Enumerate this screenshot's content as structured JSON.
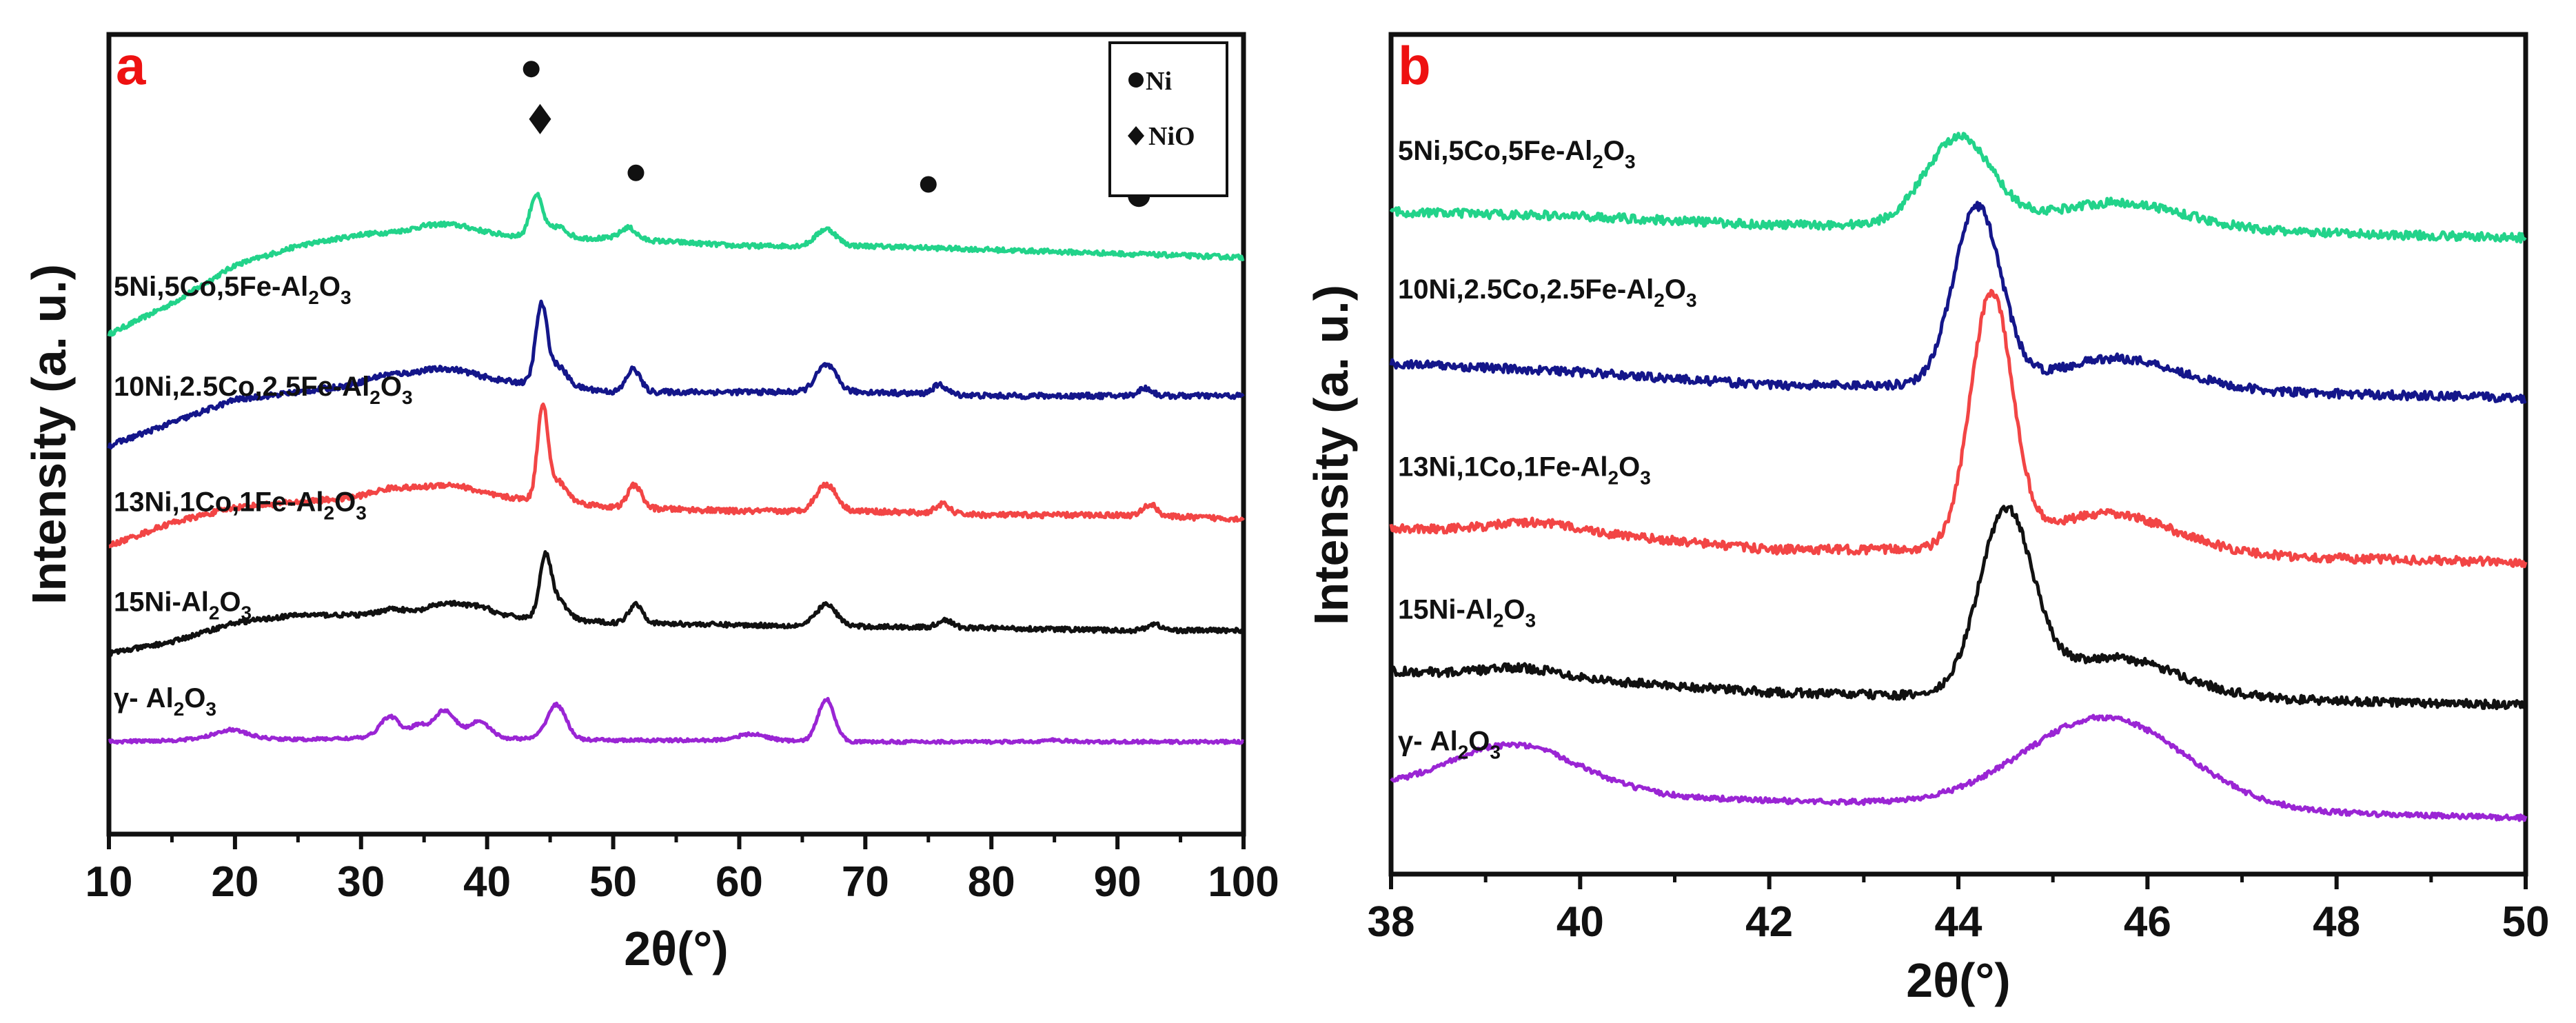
{
  "chart_data": [
    {
      "panel": "a",
      "type": "line",
      "xlabel": "2θ(°)",
      "ylabel": "Intensity (a. u.)",
      "xlim": [
        10,
        100
      ],
      "xticks": [
        10,
        20,
        30,
        40,
        50,
        60,
        70,
        80,
        90,
        100
      ],
      "legend": [
        {
          "marker": "circle",
          "label": "Ni"
        },
        {
          "marker": "diamond",
          "label": "NiO"
        }
      ],
      "markers": [
        {
          "kind": "circle",
          "x": 43.5,
          "y": 9.05
        },
        {
          "kind": "diamond",
          "x": 44.2,
          "y": 8.4
        },
        {
          "kind": "circle",
          "x": 51.8,
          "y": 7.7
        },
        {
          "kind": "circle",
          "x": 75.0,
          "y": 7.55
        },
        {
          "kind": "circle-large",
          "x": 91.7,
          "y": 7.4
        }
      ],
      "series": [
        {
          "name": "5Ni,5Co,5Fe-Al2O3",
          "label_main": "5Ni,5Co,5Fe-Al",
          "label_sub1": "2",
          "label_mid": "O",
          "label_sub2": "3",
          "color": "#22d38a",
          "baseline": [
            [
              10,
              5.6
            ],
            [
              15,
              6.0
            ],
            [
              20,
              6.5
            ],
            [
              25,
              6.75
            ],
            [
              30,
              6.9
            ],
            [
              35,
              6.95
            ],
            [
              40,
              6.9
            ],
            [
              45,
              6.85
            ],
            [
              50,
              6.85
            ],
            [
              60,
              6.75
            ],
            [
              70,
              6.75
            ],
            [
              80,
              6.7
            ],
            [
              90,
              6.65
            ],
            [
              100,
              6.6
            ]
          ],
          "peaks": [
            [
              37,
              0.1,
              2.0
            ],
            [
              43.9,
              0.55,
              0.5
            ],
            [
              45.6,
              0.15,
              0.7
            ],
            [
              51.2,
              0.15,
              0.6
            ],
            [
              66.9,
              0.22,
              0.8
            ]
          ],
          "noise": 0.03
        },
        {
          "name": "10Ni,2.5Co,2.5Fe-Al2O3",
          "label_main": "10Ni,2.5Co,2.5Fe-Al",
          "label_sub1": "2",
          "label_mid": "O",
          "label_sub2": "3",
          "color": "#14168a",
          "baseline": [
            [
              10,
              4.15
            ],
            [
              15,
              4.45
            ],
            [
              20,
              4.75
            ],
            [
              25,
              4.85
            ],
            [
              30,
              4.95
            ],
            [
              35,
              5.05
            ],
            [
              40,
              5.0
            ],
            [
              45,
              4.95
            ],
            [
              50,
              4.85
            ],
            [
              60,
              4.85
            ],
            [
              70,
              4.85
            ],
            [
              80,
              4.8
            ],
            [
              90,
              4.8
            ],
            [
              100,
              4.8
            ]
          ],
          "peaks": [
            [
              32,
              0.08,
              1.5
            ],
            [
              37,
              0.12,
              2.0
            ],
            [
              44.3,
              1.0,
              0.45
            ],
            [
              45.6,
              0.25,
              0.7
            ],
            [
              51.6,
              0.3,
              0.55
            ],
            [
              66.9,
              0.35,
              0.8
            ],
            [
              75.9,
              0.12,
              0.55
            ],
            [
              92.2,
              0.1,
              0.55
            ]
          ],
          "noise": 0.035
        },
        {
          "name": "13Ni,1Co,1Fe-Al2O3",
          "label_main": "13Ni,1Co,1Fe-Al",
          "label_sub1": "2",
          "label_mid": "O",
          "label_sub2": "3",
          "color": "#f24545",
          "baseline": [
            [
              10,
              2.85
            ],
            [
              15,
              3.15
            ],
            [
              20,
              3.35
            ],
            [
              25,
              3.42
            ],
            [
              30,
              3.48
            ],
            [
              35,
              3.5
            ],
            [
              40,
              3.48
            ],
            [
              45,
              3.45
            ],
            [
              50,
              3.35
            ],
            [
              60,
              3.3
            ],
            [
              70,
              3.3
            ],
            [
              80,
              3.25
            ],
            [
              90,
              3.25
            ],
            [
              100,
              3.2
            ]
          ],
          "peaks": [
            [
              32.5,
              0.1,
              1.5
            ],
            [
              37,
              0.15,
              2.0
            ],
            [
              44.4,
              1.2,
              0.4
            ],
            [
              45.6,
              0.25,
              0.7
            ],
            [
              51.7,
              0.3,
              0.55
            ],
            [
              66.9,
              0.35,
              0.8
            ],
            [
              76.1,
              0.12,
              0.55
            ],
            [
              92.6,
              0.15,
              0.55
            ]
          ],
          "noise": 0.035
        },
        {
          "name": "15Ni-Al2O3",
          "label_main": "15Ni-Al",
          "label_sub1": "2",
          "label_mid": "O",
          "label_sub2": "3",
          "color": "#111111",
          "baseline": [
            [
              10,
              1.45
            ],
            [
              15,
              1.6
            ],
            [
              20,
              1.85
            ],
            [
              25,
              1.95
            ],
            [
              30,
              1.95
            ],
            [
              35,
              1.95
            ],
            [
              40,
              1.95
            ],
            [
              45,
              1.9
            ],
            [
              50,
              1.85
            ],
            [
              60,
              1.82
            ],
            [
              70,
              1.8
            ],
            [
              80,
              1.78
            ],
            [
              90,
              1.75
            ],
            [
              100,
              1.75
            ]
          ],
          "peaks": [
            [
              32.5,
              0.08,
              1.0
            ],
            [
              36.8,
              0.15,
              1.5
            ],
            [
              39.5,
              0.08,
              1.0
            ],
            [
              44.6,
              0.75,
              0.45
            ],
            [
              45.6,
              0.25,
              0.7
            ],
            [
              51.8,
              0.25,
              0.55
            ],
            [
              66.9,
              0.28,
              0.8
            ],
            [
              76.3,
              0.1,
              0.55
            ],
            [
              92.9,
              0.08,
              0.55
            ]
          ],
          "noise": 0.03
        },
        {
          "name": "γ- Al2O3",
          "label_main": "γ- Al",
          "label_sub1": "2",
          "label_mid": "O",
          "label_sub2": "3",
          "color": "#9a25d4",
          "baseline": [
            [
              10,
              0.3
            ],
            [
              15,
              0.32
            ],
            [
              20,
              0.36
            ],
            [
              25,
              0.33
            ],
            [
              30,
              0.35
            ],
            [
              40,
              0.35
            ],
            [
              50,
              0.32
            ],
            [
              60,
              0.32
            ],
            [
              70,
              0.3
            ],
            [
              80,
              0.3
            ],
            [
              90,
              0.3
            ],
            [
              100,
              0.3
            ]
          ],
          "peaks": [
            [
              19.6,
              0.1,
              1.2
            ],
            [
              32.3,
              0.28,
              0.8
            ],
            [
              34.5,
              0.15,
              0.6
            ],
            [
              36.6,
              0.36,
              0.9
            ],
            [
              39.4,
              0.22,
              0.8
            ],
            [
              45.5,
              0.45,
              0.75
            ],
            [
              61,
              0.08,
              1.2
            ],
            [
              66.9,
              0.55,
              0.65
            ],
            [
              85,
              0.02,
              1.0
            ]
          ],
          "noise": 0.02
        }
      ]
    },
    {
      "panel": "b",
      "type": "line",
      "xlabel": "2θ(°)",
      "ylabel": "Intensity (a. u.)",
      "xlim": [
        38,
        50
      ],
      "xticks": [
        38,
        40,
        42,
        44,
        46,
        48,
        50
      ],
      "series": [
        {
          "name": "5Ni,5Co,5Fe-Al2O3",
          "label_main": "5Ni,5Co,5Fe-Al",
          "label_sub1": "2",
          "label_mid": "O",
          "label_sub2": "3",
          "color": "#22d38a",
          "baseline": [
            [
              38,
              6.95
            ],
            [
              40,
              6.9
            ],
            [
              42,
              6.8
            ],
            [
              44,
              6.8
            ],
            [
              46,
              6.75
            ],
            [
              48,
              6.7
            ],
            [
              50,
              6.65
            ]
          ],
          "peaks": [
            [
              44.0,
              1.0,
              0.35
            ],
            [
              45.7,
              0.3,
              0.7
            ]
          ],
          "noise": 0.05
        },
        {
          "name": "10Ni,2.5Co,2.5Fe-Al2O3",
          "label_main": "10Ni,2.5Co,2.5Fe-Al",
          "label_sub1": "2",
          "label_mid": "O",
          "label_sub2": "3",
          "color": "#14168a",
          "baseline": [
            [
              38,
              5.2
            ],
            [
              40,
              5.1
            ],
            [
              42,
              4.95
            ],
            [
              44,
              4.95
            ],
            [
              46,
              4.9
            ],
            [
              48,
              4.85
            ],
            [
              50,
              4.8
            ]
          ],
          "peaks": [
            [
              44.2,
              2.05,
              0.25
            ],
            [
              45.7,
              0.35,
              0.65
            ]
          ],
          "noise": 0.05
        },
        {
          "name": "13Ni,1Co,1Fe-Al2O3",
          "label_main": "13Ni,1Co,1Fe-Al",
          "label_sub1": "2",
          "label_mid": "O",
          "label_sub2": "3",
          "color": "#f24545",
          "baseline": [
            [
              38,
              3.3
            ],
            [
              40,
              3.25
            ],
            [
              42,
              3.05
            ],
            [
              44,
              3.05
            ],
            [
              46,
              3.0
            ],
            [
              48,
              2.95
            ],
            [
              50,
              2.9
            ]
          ],
          "peaks": [
            [
              39.5,
              0.1,
              0.4
            ],
            [
              44.35,
              2.9,
              0.22
            ],
            [
              45.6,
              0.45,
              0.7
            ]
          ],
          "noise": 0.05
        },
        {
          "name": "15Ni-Al2O3",
          "label_main": "15Ni-Al",
          "label_sub1": "2",
          "label_mid": "O",
          "label_sub2": "3",
          "color": "#111111",
          "baseline": [
            [
              38,
              1.65
            ],
            [
              40,
              1.55
            ],
            [
              42,
              1.4
            ],
            [
              44,
              1.35
            ],
            [
              46,
              1.35
            ],
            [
              48,
              1.3
            ],
            [
              50,
              1.25
            ]
          ],
          "peaks": [
            [
              39.4,
              0.1,
              0.4
            ],
            [
              44.5,
              2.05,
              0.28
            ],
            [
              45.6,
              0.45,
              0.7
            ]
          ],
          "noise": 0.05
        },
        {
          "name": "γ- Al2O3",
          "label_main": "γ- Al",
          "label_sub1": "2",
          "label_mid": "O",
          "label_sub2": "3",
          "color": "#9a25d4",
          "baseline": [
            [
              38,
              0.28
            ],
            [
              40,
              0.22
            ],
            [
              42,
              0.15
            ],
            [
              44,
              0.1
            ],
            [
              46,
              0.05
            ],
            [
              48,
              0.0
            ],
            [
              50,
              -0.05
            ]
          ],
          "peaks": [
            [
              39.3,
              0.55,
              0.7
            ],
            [
              45.55,
              1.05,
              0.85
            ]
          ],
          "noise": 0.03
        }
      ]
    }
  ]
}
